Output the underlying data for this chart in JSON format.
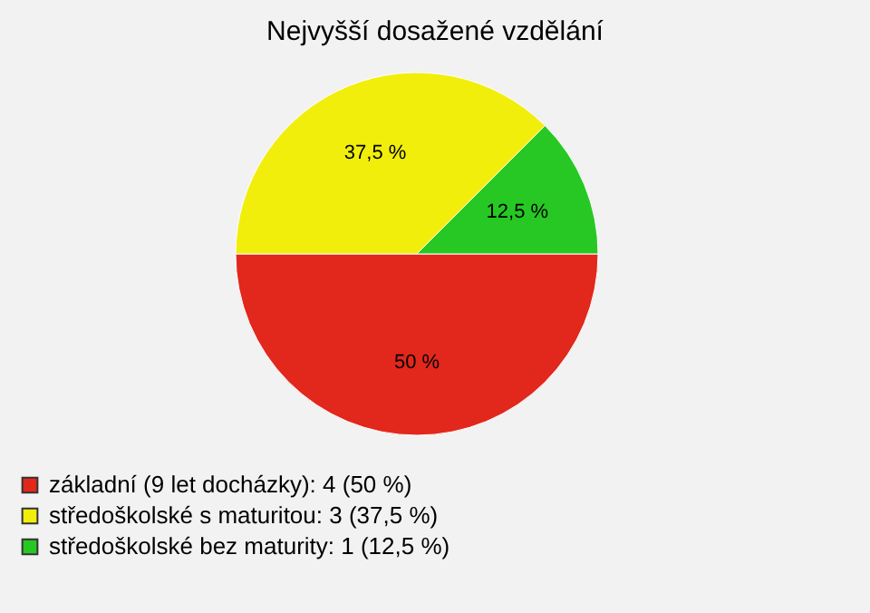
{
  "chart_data": {
    "type": "pie",
    "title": "Nejvyšší dosažené vzdělání",
    "categories": [
      "základní (9 let docházky): 4 (50 %)",
      "středoškolské s maturitou: 3 (37,5 %)",
      "středoškolské bez maturity: 1 (12,5 %)"
    ],
    "values": [
      50,
      37.5,
      12.5
    ],
    "colors": [
      "#e2271c",
      "#f2ee0c",
      "#27c824"
    ],
    "value_labels": [
      "50 %",
      "37,5 %",
      "12,5 %"
    ],
    "legend": "bottom left"
  }
}
